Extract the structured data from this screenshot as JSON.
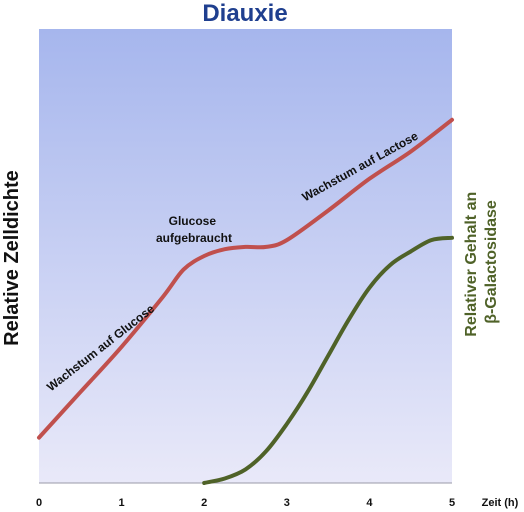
{
  "chart_data": {
    "type": "line",
    "title": "Diauxie",
    "xlabel": "Zeit (h)",
    "ylabel": "Relative Zelldichte",
    "y2label_lines": [
      "Relativer Gehalt an",
      "β-Galactosidase"
    ],
    "xlim": [
      0,
      5
    ],
    "ylim": [
      0,
      1
    ],
    "x_ticks": [
      "0",
      "1",
      "2",
      "3",
      "4",
      "5"
    ],
    "grid": false,
    "series": [
      {
        "key": "cell_density",
        "color": "#c0504d",
        "points": [
          [
            0,
            0.1
          ],
          [
            0.5,
            0.2
          ],
          [
            1,
            0.3
          ],
          [
            1.5,
            0.41
          ],
          [
            1.75,
            0.47
          ],
          [
            2,
            0.5
          ],
          [
            2.25,
            0.515
          ],
          [
            2.5,
            0.52
          ],
          [
            2.75,
            0.52
          ],
          [
            3,
            0.535
          ],
          [
            3.5,
            0.6
          ],
          [
            4,
            0.67
          ],
          [
            4.5,
            0.73
          ],
          [
            5,
            0.8
          ]
        ]
      },
      {
        "key": "beta_galactosidase",
        "color": "#4f6228",
        "points": [
          [
            2,
            0.0
          ],
          [
            2.25,
            0.01
          ],
          [
            2.5,
            0.03
          ],
          [
            2.75,
            0.07
          ],
          [
            3,
            0.13
          ],
          [
            3.25,
            0.2
          ],
          [
            3.5,
            0.28
          ],
          [
            3.75,
            0.36
          ],
          [
            4,
            0.43
          ],
          [
            4.25,
            0.48
          ],
          [
            4.5,
            0.51
          ],
          [
            4.75,
            0.535
          ],
          [
            5,
            0.54
          ]
        ]
      }
    ],
    "annotations": [
      {
        "key": "growth_glucose",
        "lines": [
          "Wachstum auf Glucose"
        ]
      },
      {
        "key": "glucose_used",
        "lines": [
          "Glucose",
          "aufgebraucht"
        ]
      },
      {
        "key": "growth_lactose",
        "lines": [
          "Wachstum auf Lactose"
        ]
      }
    ],
    "background_gradient": [
      "#a6b6ed",
      "#e9e9f9"
    ],
    "colors": {
      "title": "#1f3f8f",
      "y2label": "#4f6228"
    }
  }
}
